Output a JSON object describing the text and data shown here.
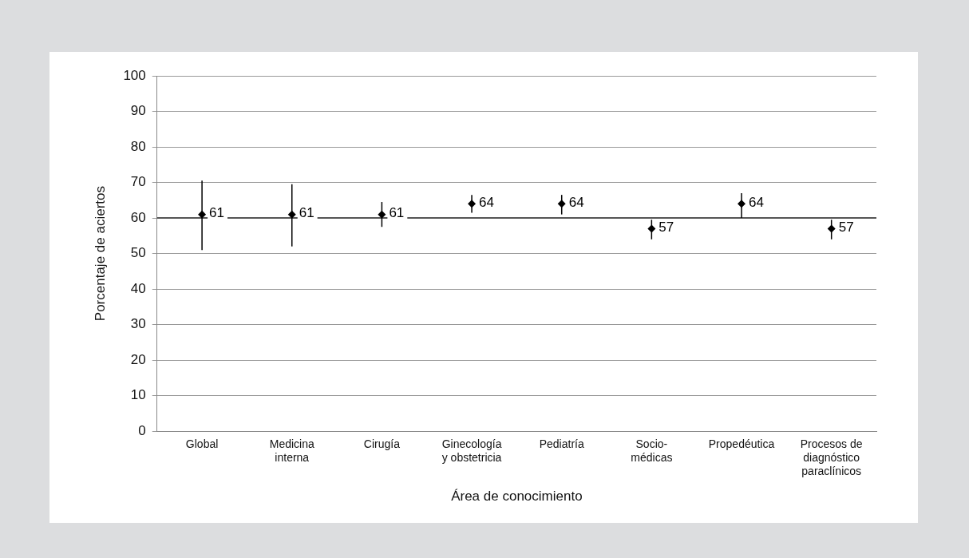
{
  "chart_data": {
    "type": "scatter",
    "xlabel": "Área de conocimiento",
    "ylabel": "Porcentaje de aciertos",
    "categories": [
      "Global",
      "Medicina interna",
      "Cirugía",
      "Ginecología y obstetricia",
      "Pediatría",
      "Socio-médicas",
      "Propedéutica",
      "Procesos de diagnóstico paraclínicos"
    ],
    "series": [
      {
        "color": "#000000",
        "values": [
          61,
          61,
          61,
          64,
          64,
          57,
          64,
          57
        ],
        "errors": [
          [
            51,
            70.5
          ],
          [
            52,
            69.5
          ],
          [
            57.5,
            64.5
          ],
          [
            61.5,
            66.5
          ],
          [
            61,
            66.5
          ],
          [
            54,
            59.5
          ],
          [
            60,
            67
          ],
          [
            54,
            59.5
          ]
        ]
      }
    ],
    "ref_lines": [
      {
        "axis": "y",
        "value": 60,
        "color": "#555555"
      }
    ],
    "ylim": [
      0,
      100
    ],
    "yticks": [
      0,
      10,
      20,
      30,
      40,
      50,
      60,
      70,
      80,
      90,
      100
    ],
    "grid": "y",
    "legend": false,
    "marker": "diamond",
    "data_labels": true
  }
}
